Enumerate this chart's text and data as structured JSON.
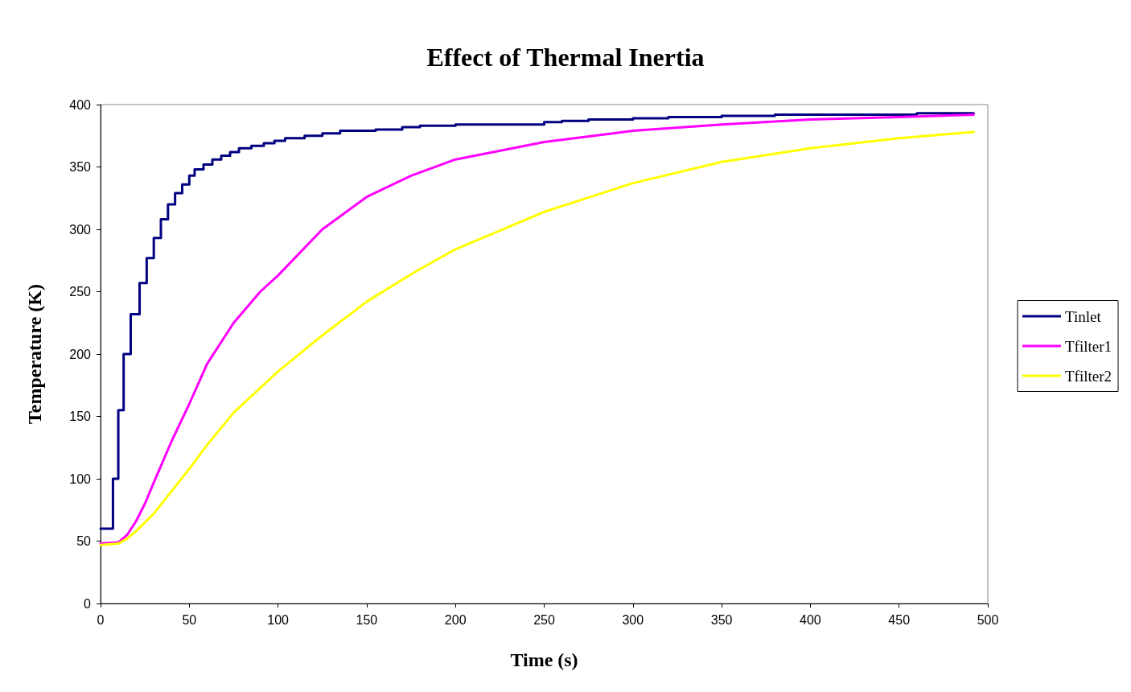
{
  "chart_data": {
    "type": "line",
    "title": "Effect of Thermal Inertia",
    "xlabel": "Time (s)",
    "ylabel": "Temperature (K)",
    "xlim": [
      0,
      500
    ],
    "xticks": [
      0,
      50,
      100,
      150,
      200,
      250,
      300,
      350,
      400,
      450,
      500
    ],
    "ylim": [
      0,
      400
    ],
    "yticks": [
      0,
      50,
      100,
      150,
      200,
      250,
      300,
      350,
      400
    ],
    "grid": false,
    "legend": "right",
    "marker": "none",
    "line_style": "solid",
    "series": [
      {
        "name": "Tinlet",
        "type": "step",
        "color": "#000080",
        "x": [
          0,
          7,
          10,
          13,
          17,
          22,
          26,
          30,
          34,
          38,
          42,
          46,
          50,
          53,
          58,
          63,
          68,
          73,
          78,
          85,
          92,
          98,
          104,
          115,
          125,
          135,
          155,
          170,
          180,
          200,
          250,
          260,
          275,
          300,
          320,
          350,
          380,
          460,
          492
        ],
        "values": [
          60,
          100,
          155,
          200,
          232,
          257,
          277,
          293,
          308,
          320,
          329,
          336,
          343,
          348,
          352,
          356,
          359,
          362,
          365,
          367,
          369,
          371,
          373,
          375,
          377,
          379,
          380,
          382,
          383,
          384,
          386,
          387,
          388,
          389,
          390,
          391,
          392,
          393,
          393
        ]
      },
      {
        "name": "Tfilter1",
        "color": "#ff00ff",
        "x": [
          0,
          10,
          15,
          20,
          25,
          30,
          40,
          50,
          60,
          75,
          90,
          100,
          125,
          150,
          175,
          200,
          250,
          300,
          350,
          400,
          450,
          492
        ],
        "values": [
          48,
          49,
          55,
          66,
          80,
          97,
          130,
          160,
          192,
          225,
          250,
          263,
          300,
          326,
          343,
          356,
          370,
          379,
          384,
          388,
          390,
          392
        ]
      },
      {
        "name": "Tfilter2",
        "color": "#ffff00",
        "x": [
          0,
          10,
          15,
          20,
          30,
          40,
          50,
          60,
          75,
          100,
          125,
          150,
          175,
          200,
          250,
          300,
          350,
          400,
          450,
          492
        ],
        "values": [
          47,
          48,
          52,
          58,
          72,
          90,
          108,
          127,
          153,
          186,
          215,
          242,
          264,
          284,
          314,
          337,
          354,
          365,
          373,
          378
        ]
      }
    ]
  }
}
